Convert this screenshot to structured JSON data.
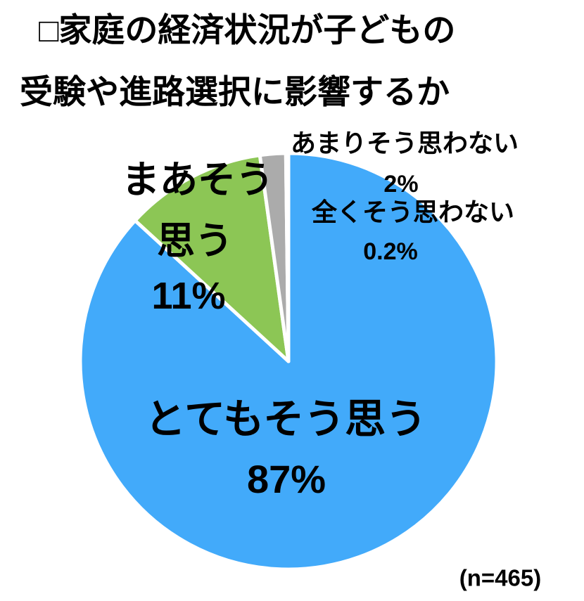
{
  "title": {
    "line1": "□家庭の経済状況が子どもの",
    "line2": "受験や進路選択に影響するか"
  },
  "sample_size": "(n=465)",
  "chart_data": {
    "type": "pie",
    "title": "家庭の経済状況が子どもの受験や進路選択に影響するか",
    "start_angle_deg": 0,
    "direction": "clockwise",
    "legend": "none",
    "labels_on_chart": true,
    "slices": [
      {
        "label": "とてもそう思う",
        "value_pct": 87,
        "display": "87%",
        "color": "#42AAFA"
      },
      {
        "label": "まあそう思う",
        "value_pct": 11,
        "display": "11%",
        "color": "#8CC655"
      },
      {
        "label": "あまりそう思わない",
        "value_pct": 2,
        "display": "2%",
        "color": "#ABABAB"
      },
      {
        "label": "全くそう思わない",
        "value_pct": 0.2,
        "display": "0.2%",
        "color": "#FFFFFF"
      }
    ]
  },
  "pie_labels": {
    "amari": "あまりそう思わない",
    "amari_pct": "2%",
    "mattaku": "全くそう思わない",
    "mattaku_pct": "0.2%",
    "maa_1": "まあそう",
    "maa_2": "思う",
    "maa_pct": "11%",
    "totemo": "とてもそう思う",
    "totemo_pct": "87%"
  }
}
